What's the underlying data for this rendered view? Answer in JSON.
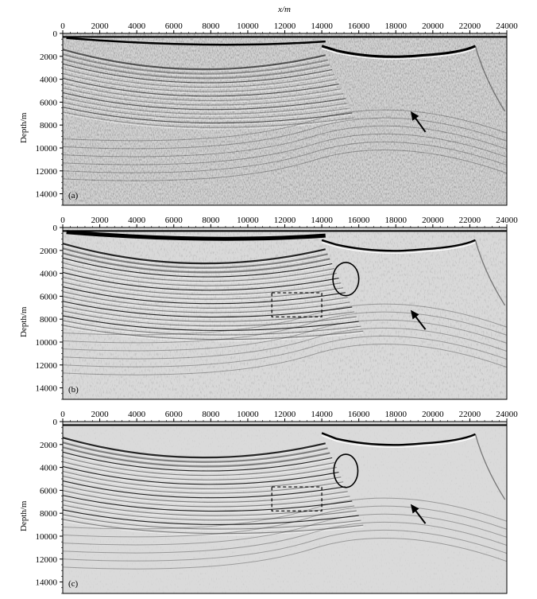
{
  "figure": {
    "x_axis_title": "x/m",
    "y_axis_title": "Depth/m"
  },
  "chart_data": [
    {
      "type": "heatmap",
      "panel_label": "(a)",
      "xlabel": "x/m",
      "ylabel": "Depth/m",
      "xlim": [
        0,
        24000
      ],
      "ylim": [
        15000,
        0
      ],
      "x_ticks": [
        0,
        2000,
        4000,
        6000,
        8000,
        10000,
        12000,
        14000,
        16000,
        18000,
        20000,
        22000,
        24000
      ],
      "y_ticks": [
        0,
        2000,
        4000,
        6000,
        8000,
        10000,
        12000,
        14000
      ],
      "colormap": "grayscale",
      "annotations": [
        {
          "type": "arrow",
          "head": [
            18800,
            6800
          ],
          "tail": [
            19600,
            8600
          ]
        }
      ]
    },
    {
      "type": "heatmap",
      "panel_label": "(b)",
      "ylabel": "Depth/m",
      "xlim": [
        0,
        24000
      ],
      "ylim": [
        15000,
        0
      ],
      "x_ticks": [
        0,
        2000,
        4000,
        6000,
        8000,
        10000,
        12000,
        14000,
        16000,
        18000,
        20000,
        22000,
        24000
      ],
      "y_ticks": [
        0,
        2000,
        4000,
        6000,
        8000,
        10000,
        12000,
        14000
      ],
      "colormap": "grayscale",
      "annotations": [
        {
          "type": "ellipse",
          "center": [
            15300,
            4500
          ],
          "radius": [
            700,
            1450
          ]
        },
        {
          "type": "dashed-rect",
          "x": [
            11300,
            14000
          ],
          "y": [
            5700,
            7800
          ]
        },
        {
          "type": "arrow",
          "head": [
            18800,
            7200
          ],
          "tail": [
            19600,
            8900
          ]
        }
      ]
    },
    {
      "type": "heatmap",
      "panel_label": "(c)",
      "ylabel": "Depth/m",
      "xlim": [
        0,
        24000
      ],
      "ylim": [
        15000,
        0
      ],
      "x_ticks": [
        0,
        2000,
        4000,
        6000,
        8000,
        10000,
        12000,
        14000,
        16000,
        18000,
        20000,
        22000,
        24000
      ],
      "y_ticks": [
        0,
        2000,
        4000,
        6000,
        8000,
        10000,
        12000,
        14000
      ],
      "colormap": "grayscale",
      "annotations": [
        {
          "type": "ellipse",
          "center": [
            15300,
            4300
          ],
          "radius": [
            650,
            1450
          ]
        },
        {
          "type": "dashed-rect",
          "x": [
            11300,
            14000
          ],
          "y": [
            5700,
            7800
          ]
        },
        {
          "type": "arrow",
          "head": [
            18800,
            7200
          ],
          "tail": [
            19600,
            8900
          ]
        }
      ]
    }
  ]
}
